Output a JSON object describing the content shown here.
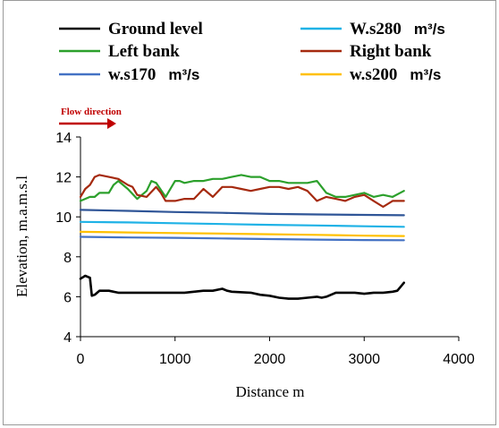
{
  "chart_data": {
    "type": "line",
    "title": "",
    "xlabel": "Distance m",
    "ylabel": "Elevation, m.a.m.s.l",
    "xlim": [
      0,
      4000
    ],
    "ylim": [
      4,
      14
    ],
    "xticks": [
      0,
      1000,
      2000,
      3000,
      4000
    ],
    "yticks": [
      4,
      6,
      8,
      10,
      12,
      14
    ],
    "grid": false,
    "legend": "top",
    "annotation": "Flow direction",
    "series": [
      {
        "name": "Ground level",
        "color": "#000000",
        "x": [
          0,
          50,
          100,
          120,
          150,
          200,
          300,
          400,
          500,
          700,
          900,
          1100,
          1300,
          1400,
          1500,
          1550,
          1600,
          1800,
          1900,
          2000,
          2100,
          2200,
          2300,
          2400,
          2500,
          2550,
          2600,
          2700,
          2800,
          2900,
          3000,
          3100,
          3200,
          3300,
          3350,
          3420
        ],
        "values": [
          6.9,
          7.05,
          6.95,
          6.05,
          6.1,
          6.3,
          6.3,
          6.2,
          6.2,
          6.2,
          6.2,
          6.2,
          6.3,
          6.3,
          6.4,
          6.3,
          6.25,
          6.2,
          6.1,
          6.05,
          5.95,
          5.9,
          5.9,
          5.95,
          6.0,
          5.95,
          6.0,
          6.2,
          6.2,
          6.2,
          6.15,
          6.2,
          6.2,
          6.25,
          6.3,
          6.7
        ]
      },
      {
        "name": "W.s280",
        "unit": "m³/s",
        "color": "#1fb2e6",
        "x": [
          0,
          500,
          1000,
          1500,
          2000,
          2500,
          3000,
          3420
        ],
        "values": [
          9.75,
          9.72,
          9.68,
          9.64,
          9.6,
          9.57,
          9.53,
          9.5
        ]
      },
      {
        "name": "Left bank",
        "color": "#2ca02c",
        "x": [
          0,
          100,
          150,
          200,
          300,
          350,
          400,
          500,
          600,
          700,
          750,
          800,
          900,
          1000,
          1050,
          1100,
          1200,
          1300,
          1400,
          1500,
          1600,
          1700,
          1800,
          1900,
          2000,
          2100,
          2200,
          2300,
          2400,
          2500,
          2600,
          2700,
          2800,
          2900,
          3000,
          3100,
          3200,
          3300,
          3420
        ],
        "values": [
          10.8,
          11.0,
          11.0,
          11.2,
          11.2,
          11.6,
          11.8,
          11.4,
          10.9,
          11.3,
          11.8,
          11.7,
          11.0,
          11.8,
          11.8,
          11.7,
          11.8,
          11.8,
          11.9,
          11.9,
          12.0,
          12.1,
          12.0,
          12.0,
          11.8,
          11.8,
          11.7,
          11.7,
          11.7,
          11.8,
          11.2,
          11.0,
          11.0,
          11.1,
          11.2,
          11.0,
          11.1,
          11.0,
          11.3
        ]
      },
      {
        "name": "Right bank",
        "color": "#a52a0f",
        "x": [
          0,
          50,
          100,
          150,
          200,
          300,
          400,
          500,
          550,
          600,
          700,
          800,
          850,
          900,
          1000,
          1100,
          1200,
          1300,
          1400,
          1500,
          1600,
          1700,
          1800,
          1900,
          2000,
          2100,
          2200,
          2300,
          2400,
          2500,
          2600,
          2700,
          2800,
          2900,
          3000,
          3100,
          3200,
          3300,
          3420
        ],
        "values": [
          11.0,
          11.4,
          11.6,
          12.0,
          12.1,
          12.0,
          11.9,
          11.6,
          11.5,
          11.1,
          11.0,
          11.5,
          11.2,
          10.8,
          10.8,
          10.9,
          10.9,
          11.4,
          11.0,
          11.5,
          11.5,
          11.4,
          11.3,
          11.4,
          11.5,
          11.5,
          11.4,
          11.5,
          11.3,
          10.8,
          11.0,
          10.9,
          10.8,
          11.0,
          11.1,
          10.8,
          10.5,
          10.8,
          10.8
        ]
      },
      {
        "name": "w.s170",
        "unit": "m³/s",
        "color": "#4472c4",
        "x": [
          0,
          500,
          1000,
          1500,
          2000,
          2500,
          3000,
          3420
        ],
        "values": [
          9.0,
          8.97,
          8.95,
          8.92,
          8.89,
          8.86,
          8.84,
          8.83
        ]
      },
      {
        "name": "w.s200",
        "unit": "m³/s",
        "color": "#ffc000",
        "x": [
          0,
          500,
          1000,
          1500,
          2000,
          2500,
          3000,
          3420
        ],
        "values": [
          9.25,
          9.22,
          9.19,
          9.16,
          9.13,
          9.1,
          9.06,
          9.04
        ]
      },
      {
        "name": "",
        "color": "#2f5597",
        "x": [
          0,
          500,
          1000,
          1500,
          2000,
          2500,
          3000,
          3420
        ],
        "values": [
          10.35,
          10.3,
          10.24,
          10.2,
          10.15,
          10.12,
          10.1,
          10.08
        ]
      }
    ]
  }
}
